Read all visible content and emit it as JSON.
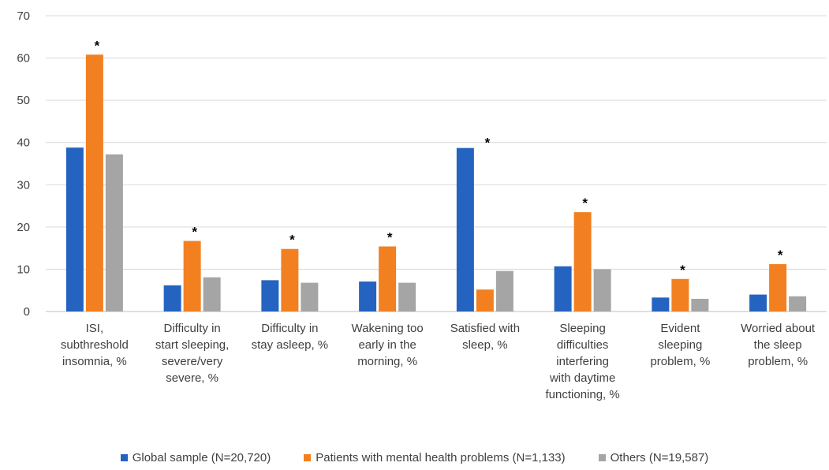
{
  "chart_data": {
    "type": "bar",
    "title": "",
    "xlabel": "",
    "ylabel": "",
    "ylim": [
      0,
      70
    ],
    "yticks": [
      0,
      10,
      20,
      30,
      40,
      50,
      60,
      70
    ],
    "grid": true,
    "legend_position": "bottom",
    "categories": [
      [
        "ISI,",
        "subthreshold",
        "insomnia, %"
      ],
      [
        "Difficulty in",
        "start sleeping,",
        "severe/very",
        "severe,  %"
      ],
      [
        "Difficulty in",
        "stay asleep, %"
      ],
      [
        "Wakening too",
        "early in the",
        "morning, %"
      ],
      [
        "Satisfied with",
        "sleep,  %"
      ],
      [
        "Sleeping",
        "difficulties",
        "interfering",
        "with daytime",
        "functioning, %"
      ],
      [
        "Evident",
        "sleeping",
        "problem, %"
      ],
      [
        "Worried about",
        "the sleep",
        "problem, %"
      ]
    ],
    "series": [
      {
        "name": "Global sample (N=20,720)",
        "color": "#2563C1",
        "values": [
          38.8,
          6.2,
          7.4,
          7.1,
          38.7,
          10.7,
          3.3,
          4.0
        ]
      },
      {
        "name": "Patients with mental health problems (N=1,133)",
        "color": "#F28020",
        "values": [
          60.8,
          16.7,
          14.8,
          15.4,
          5.2,
          23.5,
          7.7,
          11.2
        ]
      },
      {
        "name": "Others (N=19,587)",
        "color": "#A5A5A5",
        "values": [
          37.2,
          8.1,
          6.8,
          6.8,
          9.6,
          10.0,
          3.0,
          3.6
        ]
      }
    ],
    "annotations": [
      {
        "category_index": 0,
        "series": "Patients with mental health problems (N=1,133)",
        "text": "*"
      },
      {
        "category_index": 1,
        "series": "Patients with mental health problems (N=1,133)",
        "text": "*"
      },
      {
        "category_index": 2,
        "series": "Patients with mental health problems (N=1,133)",
        "text": "*"
      },
      {
        "category_index": 3,
        "series": "Patients with mental health problems (N=1,133)",
        "text": "*"
      },
      {
        "category_index": 4,
        "series": "Global sample (N=20,720)",
        "text": "*"
      },
      {
        "category_index": 5,
        "series": "Patients with mental health problems (N=1,133)",
        "text": "*"
      },
      {
        "category_index": 6,
        "series": "Patients with mental health problems (N=1,133)",
        "text": "*"
      },
      {
        "category_index": 7,
        "series": "Patients with mental health problems (N=1,133)",
        "text": "*"
      }
    ]
  }
}
